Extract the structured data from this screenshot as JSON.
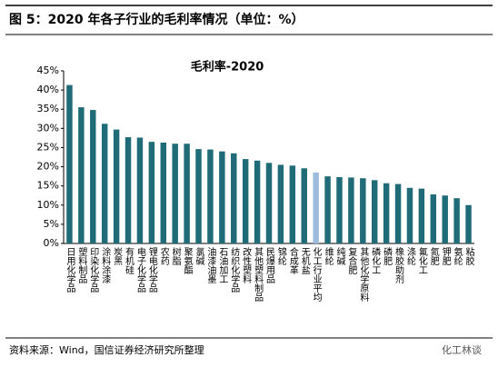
{
  "header": {
    "title": "图 5：2020 年各子行业的毛利率情况（单位：%）"
  },
  "chart_data": {
    "type": "bar",
    "title": "毛利率-2020",
    "categories": [
      "日用化学品",
      "塑料制品",
      "印染化学品",
      "涂料涂漆",
      "炭黑",
      "有机硅",
      "电子化学品",
      "锂电化学品",
      "农药",
      "树脂",
      "聚氨酯",
      "氯碱",
      "油漆油墨",
      "石油加工",
      "纺织化学品",
      "改性塑料",
      "其他塑料制品",
      "民爆用品",
      "锦纶",
      "合成革",
      "无机盐",
      "化工行业平均",
      "维纶",
      "纯碱",
      "复合肥",
      "其他化学原料",
      "磷化工",
      "磷肥",
      "橡胶助剂",
      "涤纶",
      "氟化工",
      "氮肥",
      "钾肥",
      "氨纶",
      "粘胶"
    ],
    "values": [
      41.3,
      35.5,
      34.8,
      31.2,
      29.7,
      27.7,
      27.6,
      26.5,
      26.3,
      26.0,
      26.0,
      24.6,
      24.5,
      24.0,
      23.5,
      22.0,
      21.6,
      21.0,
      20.5,
      20.3,
      19.6,
      18.5,
      17.5,
      17.3,
      17.2,
      17.0,
      16.5,
      15.7,
      15.5,
      14.5,
      14.3,
      12.8,
      12.5,
      11.8,
      10.0
    ],
    "colors": [
      "#1f6b78",
      "#1f6b78",
      "#1f6b78",
      "#1f6b78",
      "#1f6b78",
      "#1f6b78",
      "#1f6b78",
      "#1f6b78",
      "#1f6b78",
      "#1f6b78",
      "#1f6b78",
      "#1f6b78",
      "#1f6b78",
      "#1f6b78",
      "#1f6b78",
      "#1f6b78",
      "#1f6b78",
      "#1f6b78",
      "#1f6b78",
      "#1f6b78",
      "#1f6b78",
      "#9dbbdc",
      "#1f6b78",
      "#1f6b78",
      "#1f6b78",
      "#1f6b78",
      "#1f6b78",
      "#1f6b78",
      "#1f6b78",
      "#1f6b78",
      "#1f6b78",
      "#1f6b78",
      "#1f6b78",
      "#1f6b78",
      "#1f6b78"
    ],
    "ylim": [
      0,
      45
    ],
    "yticks": [
      {
        "value": 0,
        "label": "0%"
      },
      {
        "value": 5,
        "label": "5%"
      },
      {
        "value": 10,
        "label": "10%"
      },
      {
        "value": 15,
        "label": "15%"
      },
      {
        "value": 20,
        "label": "20%"
      },
      {
        "value": 25,
        "label": "25%"
      },
      {
        "value": 30,
        "label": "30%"
      },
      {
        "value": 35,
        "label": "35%"
      },
      {
        "value": 40,
        "label": "40%"
      },
      {
        "value": 45,
        "label": "45%"
      }
    ]
  },
  "footer": {
    "source": "资料来源：Wind，国信证券经济研究所整理",
    "watermark": "化工林谈"
  }
}
